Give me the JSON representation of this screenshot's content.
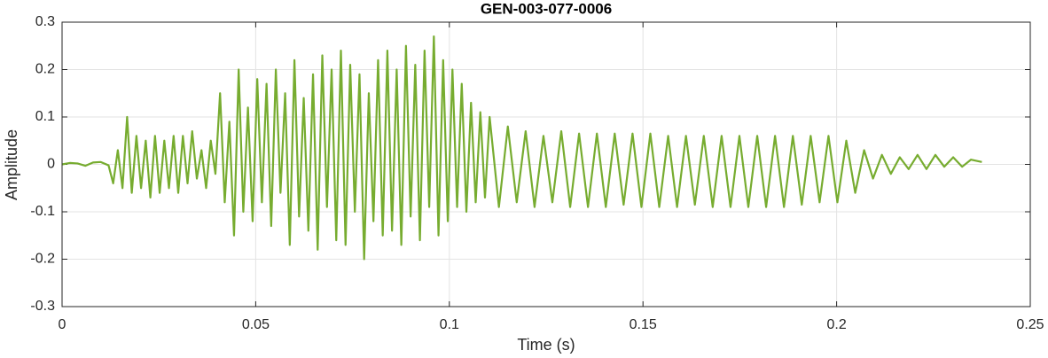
{
  "chart_data": {
    "type": "line",
    "title": "GEN-003-077-0006",
    "x_label": "Time (s)",
    "y_label": "Amplitude",
    "color": "#77ac30",
    "grid": true,
    "xlim": [
      0,
      0.25
    ],
    "xticks": [
      0,
      0.05,
      0.1,
      0.15,
      0.2,
      0.25
    ],
    "ylim": [
      -0.3,
      0.3
    ],
    "yticks": [
      -0.3,
      -0.2,
      -0.1,
      0,
      0.1,
      0.2,
      0.3
    ],
    "x": [
      0,
      0.002,
      0.004,
      0.006,
      0.008,
      0.01,
      0.012,
      0.0132,
      0.0144,
      0.0156,
      0.0168,
      0.018,
      0.0192,
      0.0204,
      0.0216,
      0.0228,
      0.024,
      0.0252,
      0.0264,
      0.0276,
      0.0288,
      0.03,
      0.0312,
      0.0324,
      0.0336,
      0.0348,
      0.036,
      0.0372,
      0.0384,
      0.0396,
      0.0408,
      0.042,
      0.0432,
      0.0444,
      0.0456,
      0.0468,
      0.048,
      0.0492,
      0.0504,
      0.0516,
      0.0528,
      0.054,
      0.0552,
      0.0564,
      0.0576,
      0.0588,
      0.06,
      0.0612,
      0.0624,
      0.0636,
      0.0648,
      0.066,
      0.0672,
      0.0684,
      0.0696,
      0.0708,
      0.072,
      0.0732,
      0.0744,
      0.0756,
      0.0768,
      0.078,
      0.0792,
      0.0804,
      0.0816,
      0.0828,
      0.084,
      0.0852,
      0.0864,
      0.0876,
      0.0888,
      0.09,
      0.0912,
      0.0924,
      0.0936,
      0.0948,
      0.096,
      0.0972,
      0.0984,
      0.0996,
      0.1008,
      0.102,
      0.1032,
      0.1044,
      0.1056,
      0.1068,
      0.108,
      0.1092,
      0.1104,
      0.1128,
      0.1151,
      0.1174,
      0.1197,
      0.122,
      0.1243,
      0.1266,
      0.1289,
      0.1312,
      0.1335,
      0.1358,
      0.1381,
      0.1404,
      0.1427,
      0.145,
      0.1473,
      0.1496,
      0.1519,
      0.1542,
      0.1565,
      0.1588,
      0.1611,
      0.1634,
      0.1657,
      0.168,
      0.1703,
      0.1726,
      0.1749,
      0.1772,
      0.1795,
      0.1818,
      0.1841,
      0.1864,
      0.1887,
      0.191,
      0.1933,
      0.1956,
      0.1979,
      0.2002,
      0.2025,
      0.2048,
      0.2071,
      0.2094,
      0.2117,
      0.214,
      0.2163,
      0.2186,
      0.2209,
      0.2232,
      0.2255,
      0.2278,
      0.2301,
      0.2324,
      0.2347,
      0.2375
    ],
    "values": [
      0,
      0.003,
      0.002,
      -0.003,
      0.004,
      0.005,
      -0.002,
      -0.04,
      0.03,
      -0.05,
      0.1,
      -0.06,
      0.06,
      -0.05,
      0.05,
      -0.07,
      0.06,
      -0.06,
      0.05,
      -0.05,
      0.06,
      -0.06,
      0.06,
      -0.04,
      0.07,
      -0.03,
      0.03,
      -0.05,
      0.05,
      -0.02,
      0.15,
      -0.08,
      0.09,
      -0.15,
      0.2,
      -0.1,
      0.12,
      -0.12,
      0.18,
      -0.08,
      0.17,
      -0.13,
      0.2,
      -0.06,
      0.15,
      -0.17,
      0.22,
      -0.11,
      0.14,
      -0.14,
      0.19,
      -0.18,
      0.23,
      -0.09,
      0.2,
      -0.16,
      0.24,
      -0.17,
      0.21,
      -0.1,
      0.19,
      -0.2,
      0.15,
      -0.12,
      0.22,
      -0.15,
      0.24,
      -0.14,
      0.2,
      -0.17,
      0.25,
      -0.11,
      0.21,
      -0.16,
      0.24,
      -0.09,
      0.27,
      -0.15,
      0.22,
      -0.12,
      0.2,
      -0.09,
      0.17,
      -0.1,
      0.13,
      -0.08,
      0.11,
      -0.07,
      0.1,
      -0.09,
      0.08,
      -0.08,
      0.07,
      -0.09,
      0.06,
      -0.08,
      0.07,
      -0.09,
      0.065,
      -0.09,
      0.065,
      -0.09,
      0.065,
      -0.085,
      0.065,
      -0.09,
      0.065,
      -0.09,
      0.06,
      -0.09,
      0.06,
      -0.085,
      0.06,
      -0.09,
      0.06,
      -0.09,
      0.06,
      -0.09,
      0.06,
      -0.09,
      0.06,
      -0.09,
      0.06,
      -0.085,
      0.06,
      -0.08,
      0.06,
      -0.08,
      0.05,
      -0.06,
      0.03,
      -0.03,
      0.02,
      -0.02,
      0.015,
      -0.01,
      0.02,
      -0.01,
      0.02,
      -0.005,
      0.015,
      -0.005,
      0.01,
      0.005
    ]
  }
}
